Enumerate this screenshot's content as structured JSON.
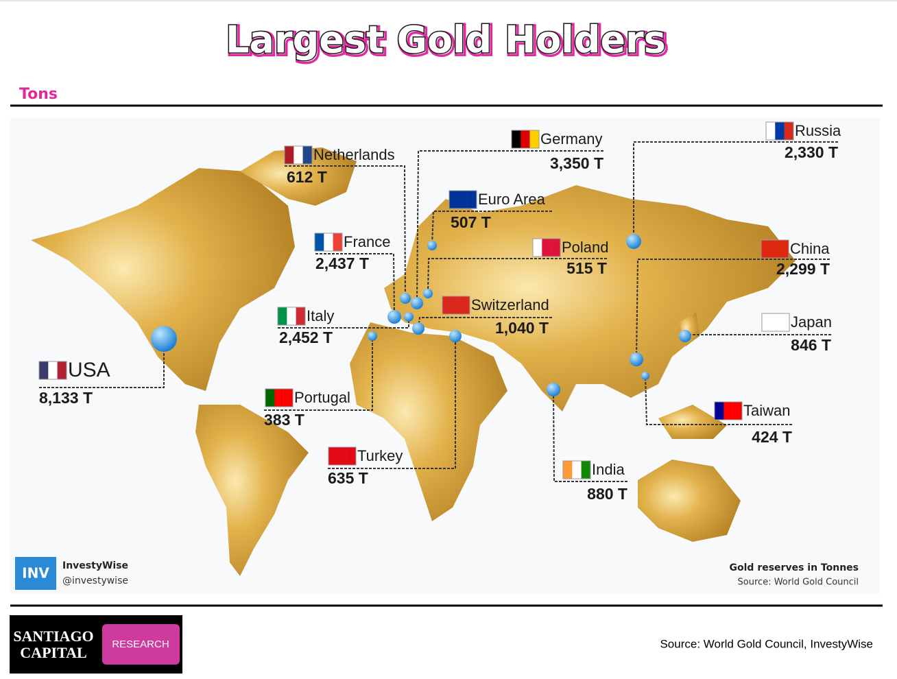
{
  "header": {
    "title": "Largest Gold Holders",
    "unit": "Tons"
  },
  "holders": [
    {
      "name": "Netherlands",
      "amount": "612 T"
    },
    {
      "name": "Germany",
      "amount": "3,350 T"
    },
    {
      "name": "Euro Area",
      "amount": "507 T"
    },
    {
      "name": "Russia",
      "amount": "2,330 T"
    },
    {
      "name": "France",
      "amount": "2,437 T"
    },
    {
      "name": "Poland",
      "amount": "515 T"
    },
    {
      "name": "China",
      "amount": "2,299 T"
    },
    {
      "name": "Italy",
      "amount": "2,452 T"
    },
    {
      "name": "Switzerland",
      "amount": "1,040 T"
    },
    {
      "name": "Japan",
      "amount": "846 T"
    },
    {
      "name": "USA",
      "amount": "8,133 T"
    },
    {
      "name": "Portugal",
      "amount": "383 T"
    },
    {
      "name": "Turkey",
      "amount": "635 T"
    },
    {
      "name": "Taiwan",
      "amount": "424 T"
    },
    {
      "name": "India",
      "amount": "880 T"
    }
  ],
  "map_credit": {
    "brand": "InvestyWise",
    "handle": "@investywise",
    "note": "Gold reserves in Tonnes",
    "source": "Source: World Gold Council"
  },
  "footer": {
    "logo_line1": "SANTIAGO",
    "logo_line2": "CAPITAL",
    "badge": "RESEARCH",
    "source": "Source: World Gold Council, InvestyWise"
  }
}
